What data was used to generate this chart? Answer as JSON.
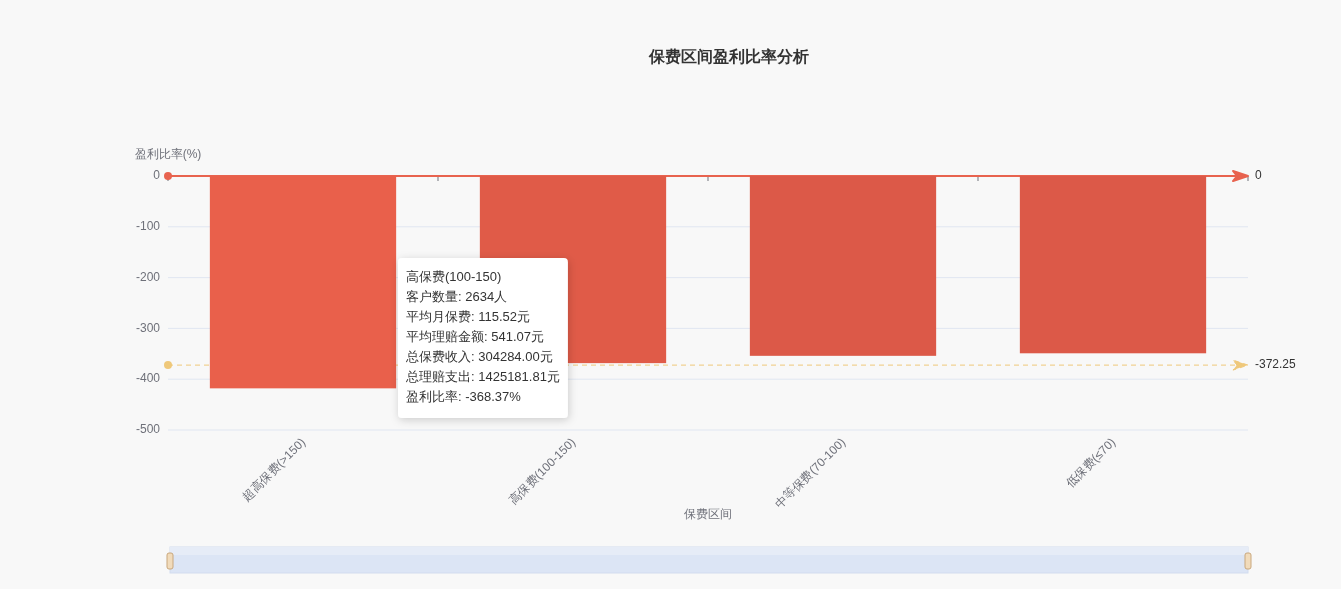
{
  "chart_data": {
    "type": "bar",
    "title": "保费区间盈利比率分析",
    "xlabel": "保费区间",
    "ylabel": "盈利比率(%)",
    "categories": [
      "超高保费(>150)",
      "高保费(100-150)",
      "中等保费(70-100)",
      "低保费(≤70)"
    ],
    "values": [
      -418,
      -368.37,
      -354,
      -349
    ],
    "colors": [
      "#e9604b",
      "#e05b48",
      "#dc5948",
      "#dc5948"
    ],
    "ylim": [
      -500,
      0
    ],
    "yticks": [
      0,
      -100,
      -200,
      -300,
      -400,
      -500
    ],
    "grid": "y",
    "ref_lines": [
      {
        "axis": "y",
        "value": 0,
        "label": "0",
        "color": "#e8634f",
        "line_style": "solid"
      },
      {
        "axis": "y",
        "value": -372.25,
        "label": "-372.25",
        "color": "#efc87a",
        "line_style": "dashed"
      }
    ],
    "annotations": [
      "高保费(100-150)",
      "客户数量: 2634人",
      "平均月保费: 115.52元",
      "平均理赔金额: 541.07元",
      "总保费收入: 304284.00元",
      "总理赔支出: 1425181.81元",
      "盈利比率: -368.37%"
    ]
  }
}
